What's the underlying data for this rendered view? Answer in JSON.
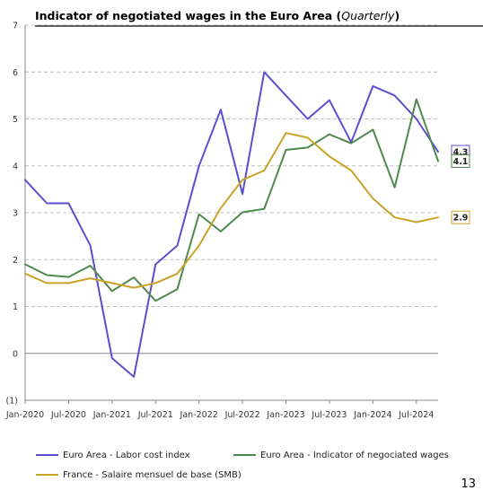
{
  "page_number": "13",
  "chart_data": {
    "type": "line",
    "title": "Indicator of negotiated wages in the Euro Area",
    "title_suffix": "Quarterly",
    "xlabel": "",
    "ylabel": "",
    "ylim": [
      -1,
      7
    ],
    "yticks": [
      -1,
      0,
      1,
      2,
      3,
      4,
      5,
      6,
      7
    ],
    "ytick_labels": [
      "(1)",
      "0",
      "1",
      "2",
      "3",
      "4",
      "5",
      "6",
      "7"
    ],
    "grid": "horizontal dashed",
    "legend_position": "bottom",
    "categories": [
      "Jan-2020",
      "Apr-2020",
      "Jul-2020",
      "Oct-2020",
      "Jan-2021",
      "Apr-2021",
      "Jul-2021",
      "Oct-2021",
      "Jan-2022",
      "Apr-2022",
      "Jul-2022",
      "Oct-2022",
      "Jan-2023",
      "Apr-2023",
      "Jul-2023",
      "Oct-2023",
      "Jan-2024",
      "Apr-2024",
      "Jul-2024",
      "Oct-2024"
    ],
    "x_tick_labels": [
      "Jan-2020",
      "Jul-2020",
      "Jan-2021",
      "Jul-2021",
      "Jan-2022",
      "Jul-2022",
      "Jan-2023",
      "Jul-2023",
      "Jan-2024",
      "Jul-2024"
    ],
    "series": [
      {
        "name": "Euro Area - Labor cost index",
        "color": "#5b4fcf",
        "values": [
          3.7,
          3.2,
          3.2,
          2.3,
          -0.1,
          -0.5,
          1.9,
          2.3,
          4.0,
          5.2,
          3.4,
          6.0,
          5.5,
          5.0,
          5.4,
          4.5,
          5.7,
          5.5,
          5.0,
          4.3
        ],
        "end_label": "4.3"
      },
      {
        "name": "Euro Area - Indicator of negociated wages",
        "color": "#4e8a4e",
        "values": [
          1.9,
          1.67,
          1.63,
          1.87,
          1.33,
          1.62,
          1.12,
          1.37,
          2.97,
          2.6,
          3.01,
          3.08,
          4.34,
          4.39,
          4.67,
          4.48,
          4.77,
          3.54,
          5.42,
          4.1
        ],
        "end_label": "4.1"
      },
      {
        "name": "France - Salaire mensuel de base (SMB)",
        "color": "#c9a227",
        "values": [
          1.7,
          1.5,
          1.5,
          1.6,
          1.5,
          1.4,
          1.5,
          1.7,
          2.3,
          3.1,
          3.7,
          3.9,
          4.7,
          4.6,
          4.2,
          3.9,
          3.3,
          2.9,
          2.8,
          2.9
        ],
        "end_label": "2.9"
      }
    ]
  }
}
